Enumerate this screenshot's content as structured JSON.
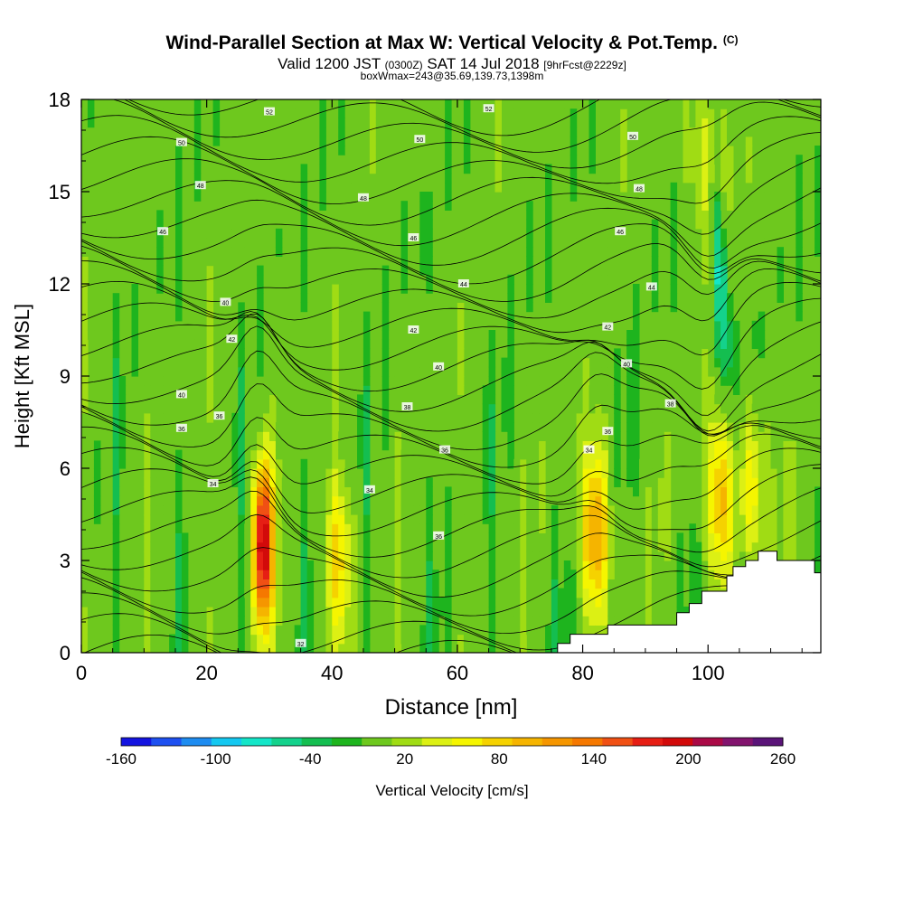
{
  "title": {
    "main": "Wind-Parallel Section at Max W: Vertical Velocity & Pot.Temp.",
    "copyright": "(C)",
    "valid_prefix": "Valid 1200 JST",
    "utc": "(0300Z)",
    "date": "SAT 14 Jul 2018",
    "fcst": "[9hrFcst@2229z]",
    "box": "boxWmax=243@35.69,139.73,1398m"
  },
  "chart_data": {
    "type": "heatmap",
    "xlabel": "Distance [nm]",
    "ylabel": "Height [Kft MSL]",
    "xlim": [
      0,
      118
    ],
    "ylim": [
      0,
      18
    ],
    "x_ticks": [
      "0",
      "20",
      "40",
      "60",
      "80",
      "100"
    ],
    "y_ticks": [
      "0",
      "3",
      "6",
      "9",
      "12",
      "15",
      "18"
    ],
    "colorbar": {
      "label": "Vertical Velocity [cm/s]",
      "tick_labels": [
        "-160",
        "-100",
        "-40",
        "20",
        "80",
        "140",
        "200",
        "260"
      ],
      "min": -160,
      "max": 260,
      "step": 20,
      "colors": [
        "#1414e0",
        "#1e50f0",
        "#1e8cf0",
        "#14c8f0",
        "#14e6c8",
        "#14d28c",
        "#14be50",
        "#1eb41e",
        "#6ec81e",
        "#a0dc14",
        "#dcf014",
        "#f5f500",
        "#f5d200",
        "#f5b400",
        "#f59600",
        "#f57800",
        "#f05014",
        "#e61e14",
        "#d20a0a",
        "#aa0a46",
        "#82146e",
        "#5a1478"
      ]
    },
    "background_velocity_cm_s": 0,
    "updraft_cores": [
      {
        "x_nm": 29,
        "height_kft": 3.5,
        "peak_cm_s": 220
      },
      {
        "x_nm": 41,
        "height_kft": 3,
        "peak_cm_s": 80
      },
      {
        "x_nm": 82,
        "height_kft": 4,
        "peak_cm_s": 120
      },
      {
        "x_nm": 102,
        "height_kft": 5,
        "peak_cm_s": 100
      },
      {
        "x_nm": 107,
        "height_kft": 5.5,
        "peak_cm_s": 80
      },
      {
        "x_nm": 100,
        "height_kft": 16,
        "peak_cm_s": 60
      }
    ],
    "downdraft_cores": [
      {
        "x_nm": 102,
        "height_kft": 12,
        "peak_cm_s": -80
      }
    ],
    "terrain": [
      [
        76,
        0
      ],
      [
        76,
        0.3
      ],
      [
        78,
        0.3
      ],
      [
        78,
        0.6
      ],
      [
        84,
        0.6
      ],
      [
        84,
        0.9
      ],
      [
        95,
        0.9
      ],
      [
        95,
        1.3
      ],
      [
        97,
        1.3
      ],
      [
        97,
        1.6
      ],
      [
        99,
        1.6
      ],
      [
        99,
        2.0
      ],
      [
        103,
        2.0
      ],
      [
        103,
        2.5
      ],
      [
        104,
        2.5
      ],
      [
        104,
        2.8
      ],
      [
        106,
        2.8
      ],
      [
        106,
        3.0
      ],
      [
        108,
        3.0
      ],
      [
        108,
        3.3
      ],
      [
        111,
        3.3
      ],
      [
        111,
        3.0
      ],
      [
        117,
        3.0
      ],
      [
        117,
        2.6
      ],
      [
        118,
        2.6
      ],
      [
        118,
        0
      ]
    ],
    "pot_temp_contours": {
      "units": "C",
      "interval": 2,
      "labels": [
        {
          "text": "32",
          "x": 35,
          "y": 0.3
        },
        {
          "text": "34",
          "x": 21,
          "y": 5.5
        },
        {
          "text": "34",
          "x": 46,
          "y": 5.3
        },
        {
          "text": "36",
          "x": 57,
          "y": 3.8
        },
        {
          "text": "36",
          "x": 58,
          "y": 6.6
        },
        {
          "text": "36",
          "x": 22,
          "y": 7.7
        },
        {
          "text": "36",
          "x": 16,
          "y": 7.3
        },
        {
          "text": "34",
          "x": 81,
          "y": 6.6
        },
        {
          "text": "36",
          "x": 84,
          "y": 7.2
        },
        {
          "text": "38",
          "x": 52,
          "y": 8.0
        },
        {
          "text": "38",
          "x": 94,
          "y": 8.1
        },
        {
          "text": "40",
          "x": 16,
          "y": 8.4
        },
        {
          "text": "40",
          "x": 57,
          "y": 9.3
        },
        {
          "text": "40",
          "x": 87,
          "y": 9.4
        },
        {
          "text": "42",
          "x": 24,
          "y": 10.2
        },
        {
          "text": "42",
          "x": 53,
          "y": 10.5
        },
        {
          "text": "42",
          "x": 84,
          "y": 10.6
        },
        {
          "text": "40",
          "x": 23,
          "y": 11.4
        },
        {
          "text": "44",
          "x": 61,
          "y": 12.0
        },
        {
          "text": "44",
          "x": 91,
          "y": 11.9
        },
        {
          "text": "46",
          "x": 13,
          "y": 13.7
        },
        {
          "text": "46",
          "x": 53,
          "y": 13.5
        },
        {
          "text": "46",
          "x": 86,
          "y": 13.7
        },
        {
          "text": "48",
          "x": 19,
          "y": 15.2
        },
        {
          "text": "48",
          "x": 45,
          "y": 14.8
        },
        {
          "text": "48",
          "x": 89,
          "y": 15.1
        },
        {
          "text": "50",
          "x": 16,
          "y": 16.6
        },
        {
          "text": "50",
          "x": 54,
          "y": 16.7
        },
        {
          "text": "50",
          "x": 88,
          "y": 16.8
        },
        {
          "text": "52",
          "x": 30,
          "y": 17.6
        },
        {
          "text": "52",
          "x": 65,
          "y": 17.7
        }
      ]
    }
  }
}
